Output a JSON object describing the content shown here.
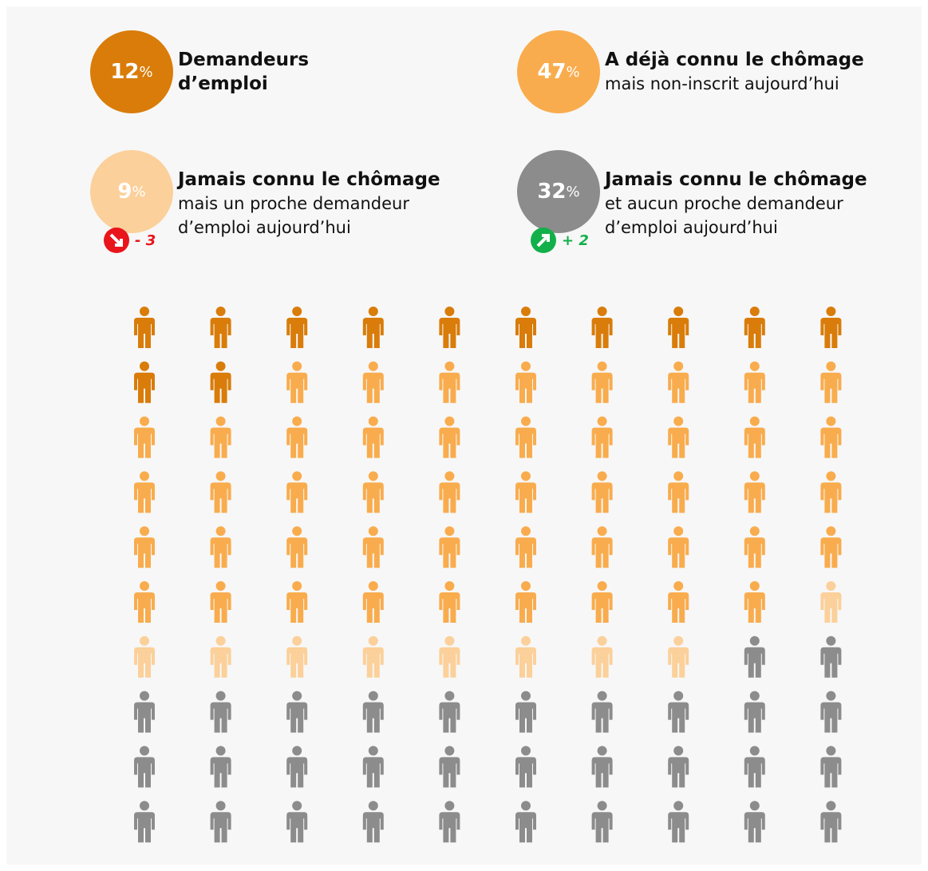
{
  "chart_data": {
    "type": "pictogram",
    "categories": [
      "Demandeurs d’emploi",
      "A déjà connu le chômage",
      "Jamais connu le chômage",
      "Jamais connu le chômage"
    ],
    "descriptions": [
      null,
      "mais non-inscrit aujourd’hui",
      "mais un proche demandeur d’emploi aujourd’hui",
      "et aucun proche demandeur d’emploi aujourd’hui"
    ],
    "values": [
      12,
      47,
      9,
      32
    ],
    "unit": "%",
    "colors": [
      "#d97c0a",
      "#f9ac4d",
      "#fbd09a",
      "#8c8c8c"
    ],
    "changes": [
      null,
      null,
      -3,
      2
    ],
    "change_labels": [
      null,
      null,
      "- 3",
      "+ 2"
    ],
    "change_colors": [
      null,
      null,
      "#e8151b",
      "#12b04a"
    ],
    "columns": 10
  }
}
